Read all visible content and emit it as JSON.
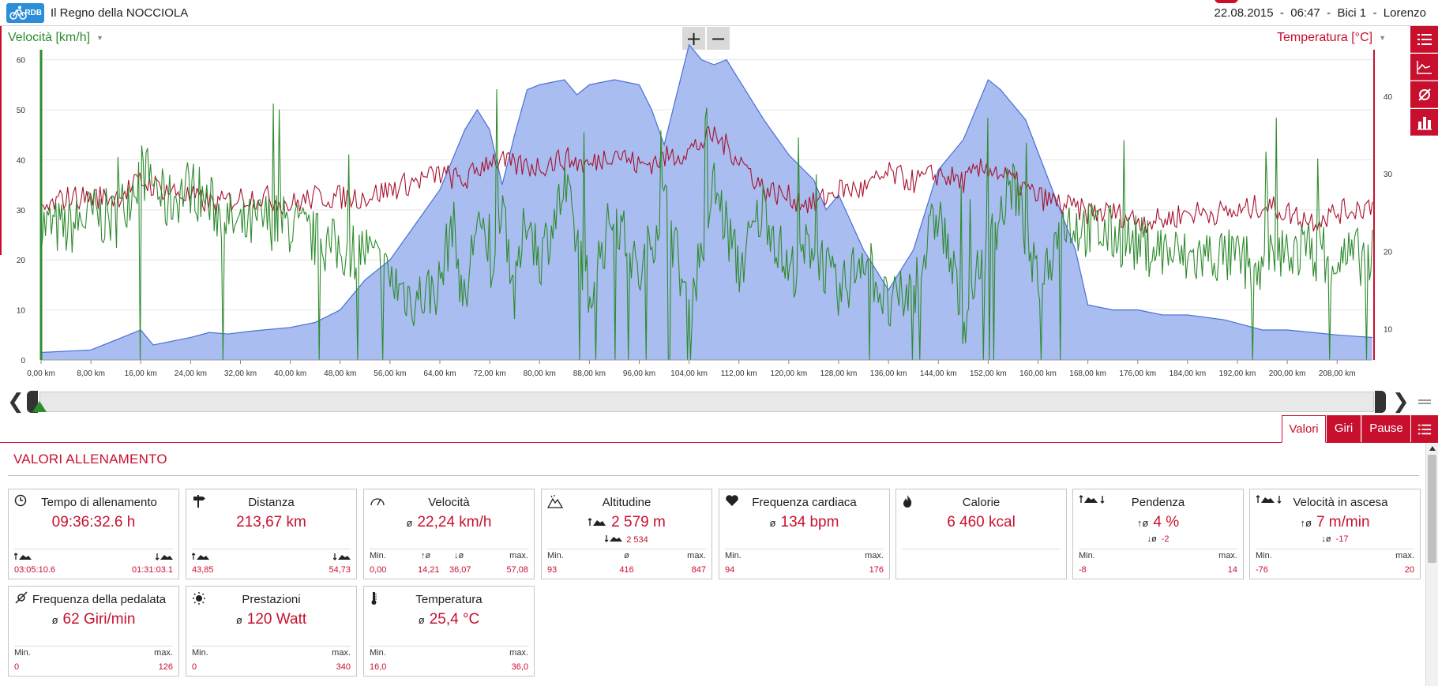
{
  "header": {
    "logo_text": "RDB",
    "title": "Il Regno della NOCCIOLA",
    "info": "22.08.2015  -  06:47  -  Bici 1  -  Lorenzo"
  },
  "chart": {
    "left_axis_label": "Velocità [km/h]",
    "right_axis_label": "Temperatura [°C]",
    "zoom_in": "+",
    "zoom_out": "−",
    "colors": {
      "speed": "#2e8b2e",
      "temperature": "#a8122e",
      "altitude_fill": "#a9bdf0",
      "altitude_line": "#4a6fd8",
      "accent": "#c8102e"
    }
  },
  "chart_data": {
    "type": "line",
    "x_unit": "km",
    "xlim": [
      0,
      213.67
    ],
    "x_ticks": [
      "0,00 km",
      "8,00 km",
      "16,00 km",
      "24,00 km",
      "32,00 km",
      "40,00 km",
      "48,00 km",
      "56,00 km",
      "64,00 km",
      "72,00 km",
      "80,00 km",
      "88,00 km",
      "96,00 km",
      "104,00 km",
      "112,00 km",
      "120,00 km",
      "128,00 km",
      "136,00 km",
      "144,00 km",
      "152,00 km",
      "160,00 km",
      "168,00 km",
      "176,00 km",
      "184,00 km",
      "192,00 km",
      "200,00 km",
      "208,00 km"
    ],
    "y_left_ticks": [
      "0",
      "10",
      "20",
      "30",
      "40",
      "50",
      "60"
    ],
    "ylim_left": [
      0,
      62
    ],
    "y_right_ticks": [
      "10",
      "20",
      "30",
      "40"
    ],
    "ylim_right": [
      6,
      46
    ],
    "grid": true,
    "series": [
      {
        "name": "Altitudine",
        "axis": "left",
        "style": "area",
        "x": [
          0,
          8,
          14,
          16,
          18,
          20,
          24,
          27,
          30,
          34,
          40,
          44,
          48,
          52,
          56,
          60,
          64,
          68,
          70,
          72,
          74,
          76,
          78,
          80,
          84,
          86,
          88,
          92,
          96,
          98,
          100,
          102,
          104,
          106,
          108,
          110,
          112,
          116,
          120,
          124,
          126,
          128,
          132,
          136,
          140,
          144,
          148,
          152,
          154,
          158,
          162,
          166,
          168,
          172,
          176,
          180,
          184,
          190,
          196,
          200,
          204,
          208,
          213.67
        ],
        "y": [
          1.5,
          2,
          5,
          6,
          3,
          3.5,
          4.5,
          5.5,
          5.2,
          5.8,
          6.5,
          7.5,
          10,
          16,
          20,
          27,
          34,
          46,
          50,
          46,
          35,
          45,
          54,
          55,
          56,
          53,
          55,
          56,
          55,
          50,
          43,
          53,
          63,
          60,
          59,
          60,
          56,
          48,
          41,
          36,
          30,
          33,
          22,
          14,
          22,
          38,
          44,
          56,
          54,
          48,
          35,
          22,
          11,
          10,
          10,
          9,
          9,
          8,
          6,
          6,
          5.5,
          5,
          4.5
        ]
      },
      {
        "name": "Velocità",
        "axis": "left",
        "style": "line",
        "x": [
          0,
          4,
          8,
          12,
          16,
          18,
          20,
          24,
          28,
          32,
          36,
          40,
          44,
          48,
          52,
          56,
          60,
          64,
          66,
          68,
          70,
          72,
          74,
          76,
          78,
          80,
          84,
          88,
          92,
          96,
          100,
          104,
          108,
          112,
          116,
          120,
          124,
          128,
          132,
          136,
          140,
          144,
          148,
          152,
          156,
          160,
          164,
          168,
          172,
          176,
          180,
          184,
          188,
          192,
          196,
          200,
          204,
          208,
          213.67
        ],
        "y": [
          27,
          26,
          29,
          28,
          38,
          36,
          31,
          35,
          30,
          26,
          28,
          27,
          24,
          22,
          22,
          16,
          12,
          15,
          28,
          10,
          30,
          16,
          34,
          12,
          30,
          20,
          34,
          14,
          30,
          16,
          32,
          10,
          35,
          18,
          31,
          17,
          24,
          12,
          22,
          10,
          14,
          30,
          8,
          22,
          36,
          14,
          28,
          26,
          25,
          23,
          22,
          20,
          21,
          20,
          18,
          22,
          22,
          20,
          21
        ]
      },
      {
        "name": "Temperatura",
        "axis": "right",
        "style": "line",
        "x": [
          0,
          4,
          8,
          12,
          16,
          20,
          24,
          28,
          32,
          36,
          40,
          44,
          48,
          52,
          56,
          60,
          64,
          68,
          72,
          76,
          80,
          84,
          88,
          92,
          96,
          100,
          104,
          108,
          112,
          116,
          120,
          124,
          128,
          132,
          136,
          140,
          144,
          148,
          152,
          156,
          160,
          164,
          168,
          172,
          176,
          180,
          184,
          188,
          192,
          196,
          200,
          204,
          208,
          213.67
        ],
        "y": [
          25,
          27,
          27,
          27,
          29,
          28,
          27,
          26,
          27,
          27,
          26,
          27,
          27,
          27,
          28,
          29,
          30,
          29,
          32,
          31,
          31,
          32,
          31,
          33,
          31,
          32,
          33,
          35,
          32,
          28,
          27,
          26,
          28,
          28,
          30,
          29,
          30,
          29,
          31,
          29,
          27,
          26,
          25,
          25,
          24,
          24,
          25,
          25,
          25,
          26,
          25,
          24,
          25,
          26
        ]
      }
    ]
  },
  "slider": {
    "left_arrow": "❮",
    "right_arrow": "❯"
  },
  "tabs": {
    "valori": "Valori",
    "giri": "Giri",
    "pause": "Pause"
  },
  "section": {
    "title": "VALORI ALLENAMENTO"
  },
  "cards": {
    "tempo": {
      "title": "Tempo di allenamento",
      "value": "09:36:32.6 h",
      "up": "03:05:10.6",
      "down": "01:31:03.1"
    },
    "distanza": {
      "title": "Distanza",
      "value": "213,67 km",
      "up": "43,85",
      "down": "54,73"
    },
    "velocita": {
      "title": "Velocità",
      "avg_prefix": "ø",
      "value": "22,24 km/h",
      "min_label": "Min.",
      "up_label": "↑ø",
      "down_label": "↓ø",
      "max_label": "max.",
      "min": "0,00",
      "up": "14,21",
      "down": "36,07",
      "max": "57,08"
    },
    "altitudine": {
      "title": "Altitudine",
      "value": "2 579 m",
      "sub": "2 534",
      "min_label": "Min.",
      "avg_label": "ø",
      "max_label": "max.",
      "min": "93",
      "avg": "416",
      "max": "847"
    },
    "freq_cardiaca": {
      "title": "Frequenza cardiaca",
      "avg_prefix": "ø",
      "value": "134 bpm",
      "min_label": "Min.",
      "max_label": "max.",
      "min": "94",
      "max": "176"
    },
    "calorie": {
      "title": "Calorie",
      "value": "6 460 kcal"
    },
    "pendenza": {
      "title": "Pendenza",
      "main_prefix": "↑ø",
      "value": "4 %",
      "sub_prefix": "↓ø",
      "sub": "-2",
      "min_label": "Min.",
      "max_label": "max.",
      "min": "-8",
      "max": "14"
    },
    "vel_ascesa": {
      "title": "Velocità in ascesa",
      "main_prefix": "↑ø",
      "value": "7 m/min",
      "sub_prefix": "↓ø",
      "sub": "-17",
      "min_label": "Min.",
      "max_label": "max.",
      "min": "-76",
      "max": "20"
    },
    "freq_pedalata": {
      "title": "Frequenza della pedalata",
      "avg_prefix": "ø",
      "value": "62 Giri/min",
      "min_label": "Min.",
      "max_label": "max.",
      "min": "0",
      "max": "126"
    },
    "prestazioni": {
      "title": "Prestazioni",
      "avg_prefix": "ø",
      "value": "120 Watt",
      "min_label": "Min.",
      "max_label": "max.",
      "min": "0",
      "max": "340"
    },
    "temperatura": {
      "title": "Temperatura",
      "avg_prefix": "ø",
      "value": "25,4 °C",
      "min_label": "Min.",
      "max_label": "max.",
      "min": "16,0",
      "max": "36,0"
    }
  }
}
